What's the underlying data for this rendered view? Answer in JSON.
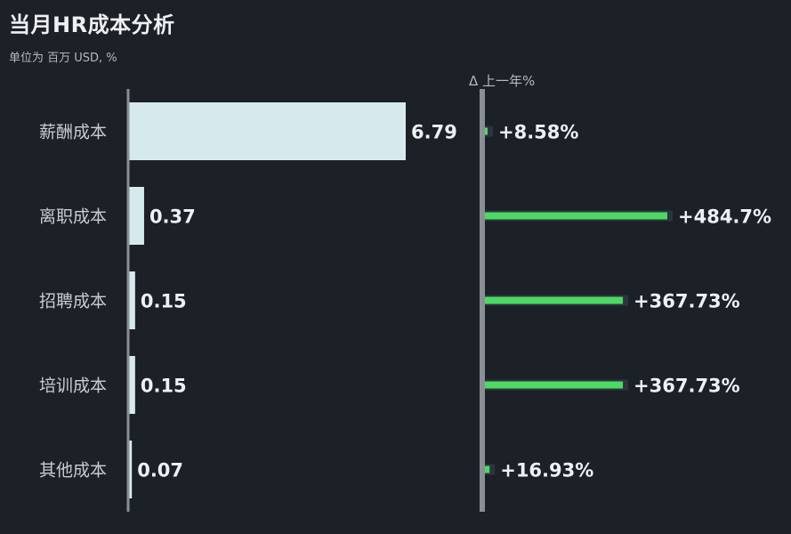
{
  "title": "当月HR成本分析",
  "subtitle": "单位为 百万 USD, %",
  "colors": {
    "background": "#1c2027",
    "bar": "#d6e9ec",
    "delta_bar": "#4cd964",
    "delta_track": "#2c3440",
    "axis": "#8a8f96"
  },
  "chart_data": {
    "type": "bar",
    "orientation": "horizontal",
    "title": "当月HR成本分析",
    "subtitle": "单位为 百万 USD, %",
    "categories": [
      "薪酬成本",
      "离职成本",
      "招聘成本",
      "培训成本",
      "其他成本"
    ],
    "values": [
      6.79,
      0.37,
      0.15,
      0.15,
      0.07
    ],
    "value_labels": [
      "6.79",
      "0.37",
      "0.15",
      "0.15",
      "0.07"
    ],
    "delta_header": "Δ 上一年%",
    "delta_values": [
      8.58,
      484.7,
      367.73,
      367.73,
      16.93
    ],
    "delta_labels": [
      "+8.58%",
      "+484.7%",
      "+367.73%",
      "+367.73%",
      "+16.93%"
    ],
    "xlim": [
      0,
      6.79
    ],
    "delta_xlim": [
      0,
      484.7
    ]
  }
}
